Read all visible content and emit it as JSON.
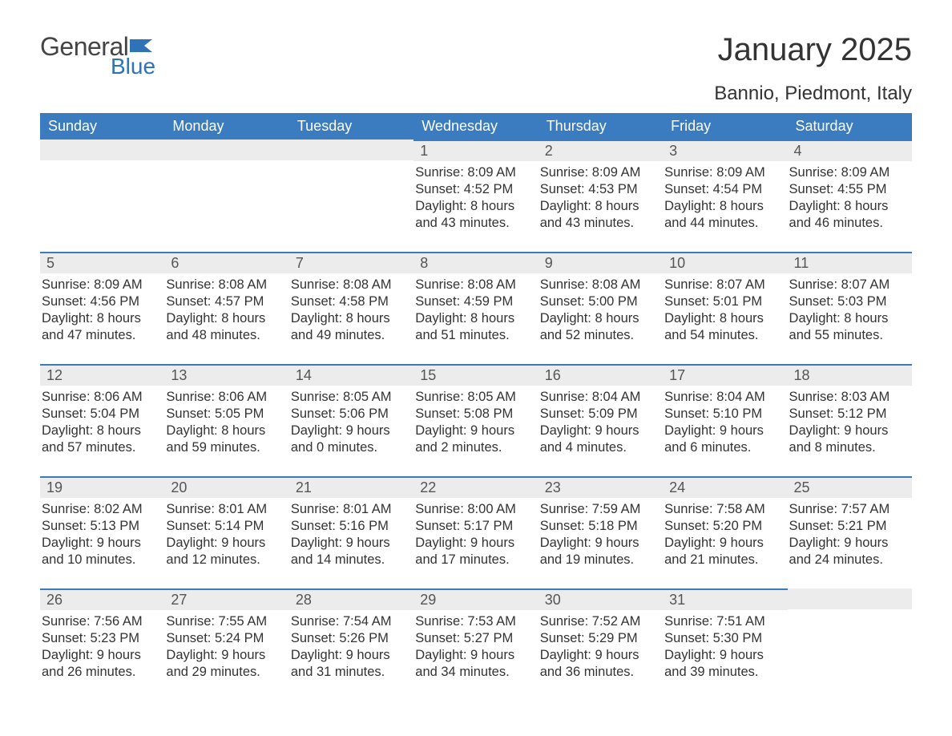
{
  "logo": {
    "word1": "General",
    "word2": "Blue",
    "flag_color": "#2f72b8",
    "text_dark": "#444444"
  },
  "title": "January 2025",
  "location": "Bannio, Piedmont, Italy",
  "styling": {
    "header_bg": "#3b7bbf",
    "header_text": "#ffffff",
    "daybar_bg": "#ececec",
    "daybar_border": "#3b7bbf",
    "body_bg": "#ffffff",
    "body_text": "#333333",
    "font_family": "Arial, Helvetica, sans-serif",
    "title_fontsize": 40,
    "location_fontsize": 24,
    "header_fontsize": 18,
    "daynum_fontsize": 18,
    "body_fontsize": 16.5,
    "columns": 7,
    "rows": 5
  },
  "weekdays": [
    "Sunday",
    "Monday",
    "Tuesday",
    "Wednesday",
    "Thursday",
    "Friday",
    "Saturday"
  ],
  "weeks": [
    [
      {
        "empty": true
      },
      {
        "empty": true
      },
      {
        "empty": true
      },
      {
        "day": "1",
        "sunrise": "8:09 AM",
        "sunset": "4:52 PM",
        "daylight_l1": "8 hours",
        "daylight_l2": "and 43 minutes."
      },
      {
        "day": "2",
        "sunrise": "8:09 AM",
        "sunset": "4:53 PM",
        "daylight_l1": "8 hours",
        "daylight_l2": "and 43 minutes."
      },
      {
        "day": "3",
        "sunrise": "8:09 AM",
        "sunset": "4:54 PM",
        "daylight_l1": "8 hours",
        "daylight_l2": "and 44 minutes."
      },
      {
        "day": "4",
        "sunrise": "8:09 AM",
        "sunset": "4:55 PM",
        "daylight_l1": "8 hours",
        "daylight_l2": "and 46 minutes."
      }
    ],
    [
      {
        "day": "5",
        "sunrise": "8:09 AM",
        "sunset": "4:56 PM",
        "daylight_l1": "8 hours",
        "daylight_l2": "and 47 minutes."
      },
      {
        "day": "6",
        "sunrise": "8:08 AM",
        "sunset": "4:57 PM",
        "daylight_l1": "8 hours",
        "daylight_l2": "and 48 minutes."
      },
      {
        "day": "7",
        "sunrise": "8:08 AM",
        "sunset": "4:58 PM",
        "daylight_l1": "8 hours",
        "daylight_l2": "and 49 minutes."
      },
      {
        "day": "8",
        "sunrise": "8:08 AM",
        "sunset": "4:59 PM",
        "daylight_l1": "8 hours",
        "daylight_l2": "and 51 minutes."
      },
      {
        "day": "9",
        "sunrise": "8:08 AM",
        "sunset": "5:00 PM",
        "daylight_l1": "8 hours",
        "daylight_l2": "and 52 minutes."
      },
      {
        "day": "10",
        "sunrise": "8:07 AM",
        "sunset": "5:01 PM",
        "daylight_l1": "8 hours",
        "daylight_l2": "and 54 minutes."
      },
      {
        "day": "11",
        "sunrise": "8:07 AM",
        "sunset": "5:03 PM",
        "daylight_l1": "8 hours",
        "daylight_l2": "and 55 minutes."
      }
    ],
    [
      {
        "day": "12",
        "sunrise": "8:06 AM",
        "sunset": "5:04 PM",
        "daylight_l1": "8 hours",
        "daylight_l2": "and 57 minutes."
      },
      {
        "day": "13",
        "sunrise": "8:06 AM",
        "sunset": "5:05 PM",
        "daylight_l1": "8 hours",
        "daylight_l2": "and 59 minutes."
      },
      {
        "day": "14",
        "sunrise": "8:05 AM",
        "sunset": "5:06 PM",
        "daylight_l1": "9 hours",
        "daylight_l2": "and 0 minutes."
      },
      {
        "day": "15",
        "sunrise": "8:05 AM",
        "sunset": "5:08 PM",
        "daylight_l1": "9 hours",
        "daylight_l2": "and 2 minutes."
      },
      {
        "day": "16",
        "sunrise": "8:04 AM",
        "sunset": "5:09 PM",
        "daylight_l1": "9 hours",
        "daylight_l2": "and 4 minutes."
      },
      {
        "day": "17",
        "sunrise": "8:04 AM",
        "sunset": "5:10 PM",
        "daylight_l1": "9 hours",
        "daylight_l2": "and 6 minutes."
      },
      {
        "day": "18",
        "sunrise": "8:03 AM",
        "sunset": "5:12 PM",
        "daylight_l1": "9 hours",
        "daylight_l2": "and 8 minutes."
      }
    ],
    [
      {
        "day": "19",
        "sunrise": "8:02 AM",
        "sunset": "5:13 PM",
        "daylight_l1": "9 hours",
        "daylight_l2": "and 10 minutes."
      },
      {
        "day": "20",
        "sunrise": "8:01 AM",
        "sunset": "5:14 PM",
        "daylight_l1": "9 hours",
        "daylight_l2": "and 12 minutes."
      },
      {
        "day": "21",
        "sunrise": "8:01 AM",
        "sunset": "5:16 PM",
        "daylight_l1": "9 hours",
        "daylight_l2": "and 14 minutes."
      },
      {
        "day": "22",
        "sunrise": "8:00 AM",
        "sunset": "5:17 PM",
        "daylight_l1": "9 hours",
        "daylight_l2": "and 17 minutes."
      },
      {
        "day": "23",
        "sunrise": "7:59 AM",
        "sunset": "5:18 PM",
        "daylight_l1": "9 hours",
        "daylight_l2": "and 19 minutes."
      },
      {
        "day": "24",
        "sunrise": "7:58 AM",
        "sunset": "5:20 PM",
        "daylight_l1": "9 hours",
        "daylight_l2": "and 21 minutes."
      },
      {
        "day": "25",
        "sunrise": "7:57 AM",
        "sunset": "5:21 PM",
        "daylight_l1": "9 hours",
        "daylight_l2": "and 24 minutes."
      }
    ],
    [
      {
        "day": "26",
        "sunrise": "7:56 AM",
        "sunset": "5:23 PM",
        "daylight_l1": "9 hours",
        "daylight_l2": "and 26 minutes."
      },
      {
        "day": "27",
        "sunrise": "7:55 AM",
        "sunset": "5:24 PM",
        "daylight_l1": "9 hours",
        "daylight_l2": "and 29 minutes."
      },
      {
        "day": "28",
        "sunrise": "7:54 AM",
        "sunset": "5:26 PM",
        "daylight_l1": "9 hours",
        "daylight_l2": "and 31 minutes."
      },
      {
        "day": "29",
        "sunrise": "7:53 AM",
        "sunset": "5:27 PM",
        "daylight_l1": "9 hours",
        "daylight_l2": "and 34 minutes."
      },
      {
        "day": "30",
        "sunrise": "7:52 AM",
        "sunset": "5:29 PM",
        "daylight_l1": "9 hours",
        "daylight_l2": "and 36 minutes."
      },
      {
        "day": "31",
        "sunrise": "7:51 AM",
        "sunset": "5:30 PM",
        "daylight_l1": "9 hours",
        "daylight_l2": "and 39 minutes."
      },
      {
        "empty": true
      }
    ]
  ],
  "labels": {
    "sunrise": "Sunrise: ",
    "sunset": "Sunset: ",
    "daylight": "Daylight: "
  }
}
